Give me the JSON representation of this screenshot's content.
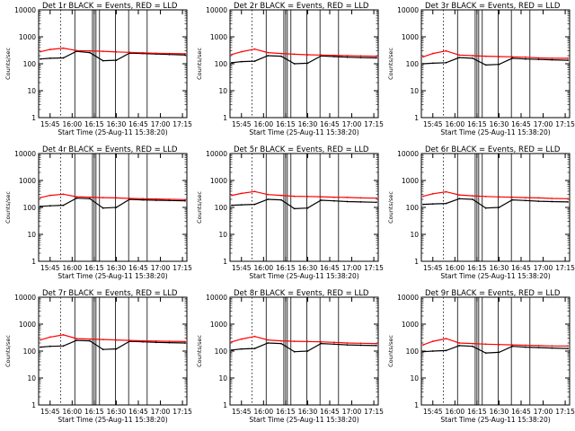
{
  "window_size": "640x480",
  "chart_data": [
    {
      "type": "line",
      "title": "Det 1r BLACK = Events, RED = LLD",
      "xlabel": "Start Time (25-Aug-11 15:38:20)",
      "ylabel": "Counts/sec",
      "yscale": "log",
      "ylim": [
        1,
        10000
      ],
      "y_ticks": [
        "1",
        "10",
        "100",
        "1000",
        "10000"
      ],
      "x_ticks": [
        "15:45",
        "16:00",
        "16:15",
        "16:30",
        "16:45",
        "17:00",
        "17:15"
      ],
      "x": [
        15.64,
        15.75,
        15.9,
        16.05,
        16.2,
        16.35,
        16.5,
        16.65,
        16.8,
        16.95,
        17.1,
        17.28
      ],
      "series": [
        {
          "name": "Events",
          "color": "#000000",
          "values": [
            150,
            160,
            165,
            290,
            260,
            130,
            135,
            250,
            240,
            230,
            220,
            210
          ]
        },
        {
          "name": "LLD",
          "color": "#ff0000",
          "values": [
            280,
            340,
            380,
            310,
            300,
            290,
            275,
            265,
            255,
            245,
            240,
            235
          ]
        }
      ],
      "grid": false
    },
    {
      "type": "line",
      "title": "Det 2r BLACK = Events, RED = LLD",
      "xlabel": "Start Time (25-Aug-11 15:38:20)",
      "ylabel": "Counts/sec",
      "yscale": "log",
      "ylim": [
        1,
        10000
      ],
      "y_ticks": [
        "1",
        "10",
        "100",
        "1000",
        "10000"
      ],
      "x_ticks": [
        "15:45",
        "16:00",
        "16:15",
        "16:30",
        "16:45",
        "17:00",
        "17:15"
      ],
      "x": [
        15.64,
        15.75,
        15.9,
        16.05,
        16.2,
        16.35,
        16.5,
        16.65,
        16.8,
        16.95,
        17.1,
        17.28
      ],
      "series": [
        {
          "name": "Events",
          "color": "#000000",
          "values": [
            110,
            120,
            125,
            200,
            190,
            100,
            105,
            195,
            185,
            175,
            170,
            165
          ]
        },
        {
          "name": "LLD",
          "color": "#ff0000",
          "values": [
            220,
            280,
            350,
            260,
            240,
            225,
            215,
            210,
            205,
            200,
            195,
            190
          ]
        }
      ],
      "grid": false
    },
    {
      "type": "line",
      "title": "Det 3r BLACK = Events, RED = LLD",
      "xlabel": "Start Time (25-Aug-11 15:38:20)",
      "ylabel": "Counts/sec",
      "yscale": "log",
      "ylim": [
        1,
        10000
      ],
      "y_ticks": [
        "1",
        "10",
        "100",
        "1000",
        "10000"
      ],
      "x_ticks": [
        "15:45",
        "16:00",
        "16:15",
        "16:30",
        "16:45",
        "17:00",
        "17:15"
      ],
      "x": [
        15.64,
        15.75,
        15.9,
        16.05,
        16.2,
        16.35,
        16.5,
        16.65,
        16.8,
        16.95,
        17.1,
        17.28
      ],
      "series": [
        {
          "name": "Events",
          "color": "#000000",
          "values": [
            100,
            105,
            110,
            170,
            160,
            90,
            95,
            160,
            150,
            145,
            140,
            135
          ]
        },
        {
          "name": "LLD",
          "color": "#ff0000",
          "values": [
            180,
            240,
            300,
            210,
            200,
            190,
            185,
            180,
            175,
            165,
            160,
            160
          ]
        }
      ],
      "grid": false
    },
    {
      "type": "line",
      "title": "Det 4r BLACK = Events, RED = LLD",
      "xlabel": "Start Time (25-Aug-11 15:38:20)",
      "ylabel": "Counts/sec",
      "yscale": "log",
      "ylim": [
        1,
        10000
      ],
      "y_ticks": [
        "1",
        "10",
        "100",
        "1000",
        "10000"
      ],
      "x_ticks": [
        "15:45",
        "16:00",
        "16:15",
        "16:30",
        "16:45",
        "17:00",
        "17:15"
      ],
      "x": [
        15.64,
        15.75,
        15.9,
        16.05,
        16.2,
        16.35,
        16.5,
        16.65,
        16.8,
        16.95,
        17.1,
        17.28
      ],
      "series": [
        {
          "name": "Events",
          "color": "#000000",
          "values": [
            110,
            115,
            120,
            220,
            210,
            95,
            100,
            200,
            190,
            185,
            180,
            175
          ]
        },
        {
          "name": "LLD",
          "color": "#ff0000",
          "values": [
            230,
            280,
            310,
            250,
            240,
            230,
            225,
            215,
            210,
            205,
            200,
            195
          ]
        }
      ],
      "grid": false
    },
    {
      "type": "line",
      "title": "Det 5r BLACK = Events, RED = LLD",
      "xlabel": "Start Time (25-Aug-11 15:38:20)",
      "ylabel": "Counts/sec",
      "yscale": "log",
      "ylim": [
        1,
        10000
      ],
      "y_ticks": [
        "1",
        "10",
        "100",
        "1000",
        "10000"
      ],
      "x_ticks": [
        "15:45",
        "16:00",
        "16:15",
        "16:30",
        "16:45",
        "17:00",
        "17:15"
      ],
      "x": [
        15.64,
        15.75,
        15.9,
        16.05,
        16.2,
        16.35,
        16.5,
        16.65,
        16.8,
        16.95,
        17.1,
        17.28
      ],
      "series": [
        {
          "name": "Events",
          "color": "#000000",
          "values": [
            120,
            125,
            130,
            200,
            190,
            90,
            95,
            185,
            175,
            165,
            160,
            155
          ]
        },
        {
          "name": "LLD",
          "color": "#ff0000",
          "values": [
            280,
            330,
            390,
            300,
            280,
            260,
            255,
            250,
            240,
            235,
            225,
            220
          ]
        }
      ],
      "grid": false
    },
    {
      "type": "line",
      "title": "Det 6r BLACK = Events, RED = LLD",
      "xlabel": "Start Time (25-Aug-11 15:38:20)",
      "ylabel": "Counts/sec",
      "yscale": "log",
      "ylim": [
        1,
        10000
      ],
      "y_ticks": [
        "1",
        "10",
        "100",
        "1000",
        "10000"
      ],
      "x_ticks": [
        "15:45",
        "16:00",
        "16:15",
        "16:30",
        "16:45",
        "17:00",
        "17:15"
      ],
      "x": [
        15.64,
        15.75,
        15.9,
        16.05,
        16.2,
        16.35,
        16.5,
        16.65,
        16.8,
        16.95,
        17.1,
        17.28
      ],
      "series": [
        {
          "name": "Events",
          "color": "#000000",
          "values": [
            130,
            135,
            140,
            210,
            200,
            95,
            100,
            190,
            180,
            170,
            165,
            160
          ]
        },
        {
          "name": "LLD",
          "color": "#ff0000",
          "values": [
            260,
            320,
            380,
            290,
            270,
            255,
            245,
            240,
            230,
            225,
            215,
            210
          ]
        }
      ],
      "grid": false
    },
    {
      "type": "line",
      "title": "Det 7r BLACK = Events, RED = LLD",
      "xlabel": "Start Time (25-Aug-11 15:38:20)",
      "ylabel": "Counts/sec",
      "yscale": "log",
      "ylim": [
        1,
        10000
      ],
      "y_ticks": [
        "1",
        "10",
        "100",
        "1000",
        "10000"
      ],
      "x_ticks": [
        "15:45",
        "16:00",
        "16:15",
        "16:30",
        "16:45",
        "17:00",
        "17:15"
      ],
      "x": [
        15.64,
        15.75,
        15.9,
        16.05,
        16.2,
        16.35,
        16.5,
        16.65,
        16.8,
        16.95,
        17.1,
        17.28
      ],
      "series": [
        {
          "name": "Events",
          "color": "#000000",
          "values": [
            140,
            150,
            155,
            250,
            240,
            115,
            120,
            230,
            220,
            210,
            205,
            200
          ]
        },
        {
          "name": "LLD",
          "color": "#ff0000",
          "values": [
            260,
            330,
            400,
            290,
            280,
            270,
            260,
            250,
            240,
            235,
            230,
            225
          ]
        }
      ],
      "grid": false
    },
    {
      "type": "line",
      "title": "Det 8r BLACK = Events, RED = LLD",
      "xlabel": "Start Time (25-Aug-11 15:38:20)",
      "ylabel": "Counts/sec",
      "yscale": "log",
      "ylim": [
        1,
        10000
      ],
      "y_ticks": [
        "1",
        "10",
        "100",
        "1000",
        "10000"
      ],
      "x_ticks": [
        "15:45",
        "16:00",
        "16:15",
        "16:30",
        "16:45",
        "17:00",
        "17:15"
      ],
      "x": [
        15.64,
        15.75,
        15.9,
        16.05,
        16.2,
        16.35,
        16.5,
        16.65,
        16.8,
        16.95,
        17.1,
        17.28
      ],
      "series": [
        {
          "name": "Events",
          "color": "#000000",
          "values": [
            110,
            120,
            125,
            200,
            190,
            95,
            100,
            190,
            180,
            170,
            165,
            160
          ]
        },
        {
          "name": "LLD",
          "color": "#ff0000",
          "values": [
            220,
            280,
            350,
            260,
            240,
            230,
            225,
            220,
            210,
            200,
            195,
            190
          ]
        }
      ],
      "grid": false
    },
    {
      "type": "line",
      "title": "Det 9r BLACK = Events, RED = LLD",
      "xlabel": "Start Time (25-Aug-11 15:38:20)",
      "ylabel": "Counts/sec",
      "yscale": "log",
      "ylim": [
        1,
        10000
      ],
      "y_ticks": [
        "1",
        "10",
        "100",
        "1000",
        "10000"
      ],
      "x_ticks": [
        "15:45",
        "16:00",
        "16:15",
        "16:30",
        "16:45",
        "17:00",
        "17:15"
      ],
      "x": [
        15.64,
        15.75,
        15.9,
        16.05,
        16.2,
        16.35,
        16.5,
        16.65,
        16.8,
        16.95,
        17.1,
        17.28
      ],
      "series": [
        {
          "name": "Events",
          "color": "#000000",
          "values": [
            95,
            100,
            105,
            160,
            150,
            85,
            90,
            150,
            140,
            135,
            130,
            125
          ]
        },
        {
          "name": "LLD",
          "color": "#ff0000",
          "values": [
            170,
            230,
            290,
            200,
            190,
            180,
            175,
            170,
            165,
            160,
            155,
            155
          ]
        }
      ],
      "grid": false
    }
  ]
}
